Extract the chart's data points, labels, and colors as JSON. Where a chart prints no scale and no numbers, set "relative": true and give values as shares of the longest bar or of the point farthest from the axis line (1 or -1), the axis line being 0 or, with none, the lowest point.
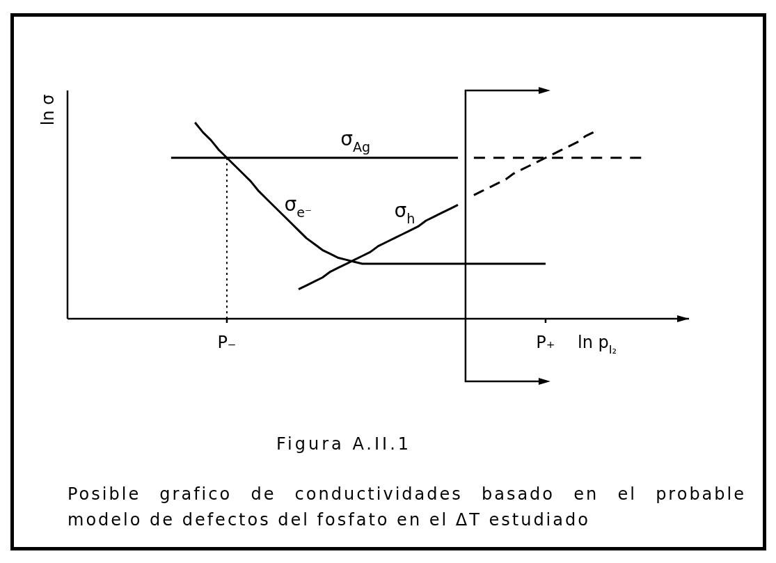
{
  "chart_data": {
    "type": "line",
    "relative": true,
    "xlabel": "ln p$_{I₂}$",
    "ylabel": "ln σ",
    "annotations": [
      "Figura A.II.1",
      "Posible grafico de conductividades basado en el probable modelo de defectos del fosfato en el ΔT estudiado"
    ],
    "categories": [
      null,
      null,
      null,
      null,
      null,
      null,
      null,
      null,
      null,
      null,
      null,
      null,
      null,
      null,
      null,
      null,
      null,
      null,
      null,
      null,
      "P₋",
      null,
      null,
      null,
      null,
      null,
      null,
      null,
      null,
      null,
      null,
      null,
      null,
      null,
      null,
      null,
      null,
      null,
      null,
      null,
      null,
      null,
      null,
      null,
      null,
      null,
      null,
      null,
      null,
      null,
      null,
      null,
      null,
      null,
      null,
      null,
      null,
      null,
      null,
      null,
      "P₊",
      null,
      null,
      null,
      null,
      null,
      null,
      null,
      null,
      null,
      null,
      null,
      null,
      null,
      null,
      null,
      null,
      null,
      null
    ],
    "tick_labels": "x",
    "marker": "none",
    "series": [
      {
        "name": "σ$_{Ag}$",
        "color": "#000000",
        "line_style": "solid",
        "values": [
          null,
          null,
          null,
          null,
          null,
          null,
          null,
          null,
          null,
          null,
          null,
          null,
          null,
          0.82,
          0.82,
          0.82,
          0.82,
          0.82,
          0.82,
          0.82,
          0.82,
          0.82,
          0.82,
          0.82,
          0.82,
          0.82,
          0.82,
          0.82,
          0.82,
          0.82,
          0.82,
          0.82,
          0.82,
          0.82,
          0.82,
          0.82,
          0.82,
          0.82,
          0.82,
          0.82,
          0.82,
          0.82,
          0.82,
          0.82,
          0.82,
          0.82,
          0.82,
          0.82,
          0.82,
          0.82,
          null,
          null,
          null,
          null,
          null,
          null,
          null,
          null,
          null,
          null,
          null,
          null,
          null,
          null,
          null,
          null,
          null,
          null,
          null,
          null,
          null,
          null,
          null,
          null,
          null,
          null,
          null,
          null,
          null
        ]
      },
      {
        "color": "#000000",
        "line_style": "dashed",
        "values": [
          null,
          null,
          null,
          null,
          null,
          null,
          null,
          null,
          null,
          null,
          null,
          null,
          null,
          null,
          null,
          null,
          null,
          null,
          null,
          null,
          null,
          null,
          null,
          null,
          null,
          null,
          null,
          null,
          null,
          null,
          null,
          null,
          null,
          null,
          null,
          null,
          null,
          null,
          null,
          null,
          null,
          null,
          null,
          null,
          null,
          null,
          null,
          null,
          null,
          null,
          null,
          0.82,
          0.82,
          0.82,
          0.82,
          0.82,
          0.82,
          0.82,
          0.82,
          0.82,
          0.82,
          0.82,
          0.82,
          0.82,
          0.82,
          0.82,
          0.82,
          0.82,
          0.82,
          0.82,
          0.82,
          0.82,
          0.82,
          null,
          null,
          null,
          null,
          null,
          null
        ]
      },
      {
        "name": "σ$_{e⁻}$",
        "color": "#000000",
        "line_style": "solid",
        "values": [
          null,
          null,
          null,
          null,
          null,
          null,
          null,
          null,
          null,
          null,
          null,
          null,
          null,
          null,
          null,
          null,
          1,
          0.95,
          0.91,
          0.86,
          0.82,
          0.78,
          0.74,
          0.7,
          0.65,
          0.61,
          0.57,
          0.53,
          0.49,
          0.45,
          0.41,
          0.38,
          0.35,
          0.33,
          0.31,
          0.3,
          0.29,
          0.28,
          0.28,
          0.28,
          0.28,
          0.28,
          0.28,
          0.28,
          0.28,
          0.28,
          0.28,
          0.28,
          0.28,
          0.28,
          0.28,
          0.28,
          0.28,
          0.28,
          0.28,
          0.28,
          0.28,
          0.28,
          0.28,
          0.28,
          0.28,
          null,
          null,
          null,
          null,
          null,
          null,
          null,
          null,
          null,
          null,
          null,
          null,
          null,
          null,
          null,
          null,
          null,
          null
        ]
      },
      {
        "name": "σ$_{h}$",
        "color": "#000000",
        "line_style": "solid",
        "values": [
          null,
          null,
          null,
          null,
          null,
          null,
          null,
          null,
          null,
          null,
          null,
          null,
          null,
          null,
          null,
          null,
          null,
          null,
          null,
          null,
          null,
          null,
          null,
          null,
          null,
          null,
          null,
          null,
          null,
          0.15,
          0.17,
          0.19,
          0.21,
          0.24,
          0.26,
          0.28,
          0.3,
          0.32,
          0.34,
          0.37,
          0.39,
          0.41,
          0.43,
          0.45,
          0.47,
          0.5,
          0.52,
          0.54,
          0.56,
          0.58,
          null,
          null,
          null,
          null,
          null,
          null,
          null,
          null,
          null,
          null,
          null,
          null,
          null,
          null,
          null,
          null,
          null,
          null,
          null,
          null,
          null,
          null,
          null,
          null,
          null,
          null,
          null,
          null,
          null
        ]
      },
      {
        "color": "#000000",
        "line_style": "dashed",
        "values": [
          null,
          null,
          null,
          null,
          null,
          null,
          null,
          null,
          null,
          null,
          null,
          null,
          null,
          null,
          null,
          null,
          null,
          null,
          null,
          null,
          null,
          null,
          null,
          null,
          null,
          null,
          null,
          null,
          null,
          null,
          null,
          null,
          null,
          null,
          null,
          null,
          null,
          null,
          null,
          null,
          null,
          null,
          null,
          null,
          null,
          null,
          null,
          null,
          null,
          null,
          null,
          0.63,
          0.65,
          0.67,
          0.69,
          0.71,
          0.74,
          0.76,
          0.78,
          0.8,
          0.82,
          0.84,
          0.86,
          0.88,
          0.9,
          0.93,
          0.95,
          null,
          null,
          null,
          null,
          null,
          null,
          null,
          null,
          null,
          null,
          null,
          null
        ]
      },
      {
        "color": "#000000",
        "line_style": "dotted",
        "x": [
          "P₋",
          "P₋"
        ],
        "values": [
          0,
          0.82
        ]
      }
    ]
  }
}
